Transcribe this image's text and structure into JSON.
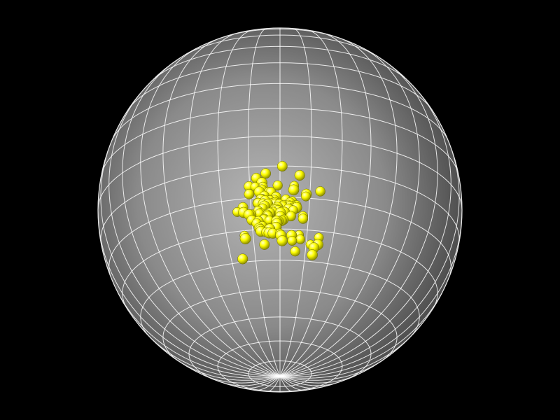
{
  "scene": {
    "background_color": "#000000",
    "sphere": {
      "shade_highlight": "#b4b4b4",
      "shade_mid": "#8a8a8a",
      "shade_edge": "#3a3a3a",
      "grid_color": "#ffffff",
      "latitude_lines": 18,
      "longitude_lines": 36,
      "tilt_degrees": 24
    },
    "particles": {
      "count": 112,
      "color": "#ffff00",
      "highlight_color": "#ffffcc",
      "shadow_color": "#8a8a00"
    }
  }
}
